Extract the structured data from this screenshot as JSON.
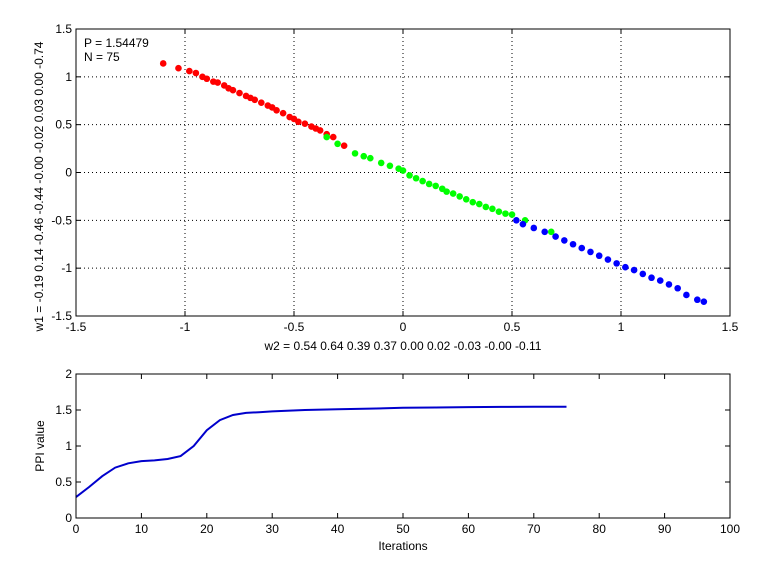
{
  "chart_data": [
    {
      "type": "scatter",
      "annotations": [
        "P = 1.54479",
        "N = 75"
      ],
      "xlabel": "w2 = 0.54  0.64  0.39  0.37  0.00  0.02  -0.03  -0.00  -0.11",
      "ylabel": "w1 = -0.19  0.14  -0.46  -0.44  -0.00  -0.02  0.03  0.00  -0.74",
      "xlim": [
        -1.5,
        1.5
      ],
      "ylim": [
        -1.5,
        1.5
      ],
      "xticks": [
        "-1.5",
        "-1",
        "-0.5",
        "0",
        "0.5",
        "1",
        "1.5"
      ],
      "yticks": [
        "-1.5",
        "-1",
        "-0.5",
        "0",
        "0.5",
        "1",
        "1.5"
      ],
      "grid": "dotted",
      "colors": {
        "series_red": "#ff0000",
        "series_green": "#00ff00",
        "series_blue": "#0000ff"
      },
      "series": [
        {
          "color": "#ff0000",
          "x": [
            -1.1,
            -1.03,
            -0.98,
            -0.95,
            -0.92,
            -0.9,
            -0.87,
            -0.85,
            -0.82,
            -0.8,
            -0.78,
            -0.75,
            -0.72,
            -0.7,
            -0.68,
            -0.65,
            -0.62,
            -0.6,
            -0.58,
            -0.55,
            -0.52,
            -0.5,
            -0.48,
            -0.45,
            -0.42,
            -0.4,
            -0.38,
            -0.35,
            -0.32,
            -0.27
          ],
          "y": [
            1.14,
            1.09,
            1.06,
            1.04,
            1.0,
            0.98,
            0.95,
            0.94,
            0.91,
            0.88,
            0.86,
            0.83,
            0.8,
            0.78,
            0.76,
            0.73,
            0.7,
            0.68,
            0.65,
            0.62,
            0.58,
            0.56,
            0.53,
            0.51,
            0.48,
            0.46,
            0.44,
            0.4,
            0.37,
            0.28
          ]
        },
        {
          "color": "#00ff00",
          "x": [
            -0.35,
            -0.3,
            -0.22,
            -0.18,
            -0.15,
            -0.1,
            -0.06,
            -0.02,
            0.0,
            0.03,
            0.06,
            0.09,
            0.12,
            0.15,
            0.18,
            0.2,
            0.23,
            0.26,
            0.29,
            0.32,
            0.35,
            0.38,
            0.41,
            0.44,
            0.47,
            0.5,
            0.56,
            0.68
          ],
          "y": [
            0.37,
            0.3,
            0.2,
            0.17,
            0.15,
            0.1,
            0.07,
            0.04,
            0.02,
            -0.03,
            -0.06,
            -0.09,
            -0.12,
            -0.14,
            -0.17,
            -0.2,
            -0.22,
            -0.25,
            -0.28,
            -0.31,
            -0.33,
            -0.36,
            -0.38,
            -0.41,
            -0.43,
            -0.44,
            -0.5,
            -0.62
          ]
        },
        {
          "color": "#0000ff",
          "x": [
            0.52,
            0.55,
            0.6,
            0.65,
            0.7,
            0.74,
            0.78,
            0.82,
            0.86,
            0.9,
            0.94,
            0.98,
            1.02,
            1.06,
            1.1,
            1.14,
            1.18,
            1.22,
            1.26,
            1.3,
            1.35,
            1.38
          ],
          "y": [
            -0.5,
            -0.54,
            -0.58,
            -0.62,
            -0.67,
            -0.71,
            -0.75,
            -0.79,
            -0.83,
            -0.87,
            -0.91,
            -0.95,
            -0.99,
            -1.02,
            -1.06,
            -1.1,
            -1.13,
            -1.17,
            -1.21,
            -1.28,
            -1.33,
            -1.35
          ]
        }
      ]
    },
    {
      "type": "line",
      "xlabel": "Iterations",
      "ylabel": "PPI value",
      "xlim": [
        0,
        100
      ],
      "ylim": [
        0,
        2
      ],
      "xticks": [
        "0",
        "10",
        "20",
        "30",
        "40",
        "50",
        "60",
        "70",
        "80",
        "90",
        "100"
      ],
      "yticks": [
        "0",
        "0.5",
        "1",
        "1.5",
        "2"
      ],
      "grid": "none",
      "colors": {
        "line": "#0000cc"
      },
      "series": [
        {
          "color": "#0000cc",
          "x": [
            0,
            2,
            4,
            6,
            8,
            10,
            12,
            14,
            16,
            18,
            20,
            22,
            24,
            26,
            28,
            30,
            35,
            40,
            45,
            50,
            55,
            60,
            65,
            70,
            75
          ],
          "y": [
            0.29,
            0.43,
            0.58,
            0.7,
            0.76,
            0.79,
            0.8,
            0.82,
            0.86,
            1.0,
            1.22,
            1.36,
            1.43,
            1.46,
            1.47,
            1.48,
            1.5,
            1.51,
            1.52,
            1.53,
            1.535,
            1.54,
            1.543,
            1.545,
            1.545
          ]
        }
      ]
    }
  ]
}
